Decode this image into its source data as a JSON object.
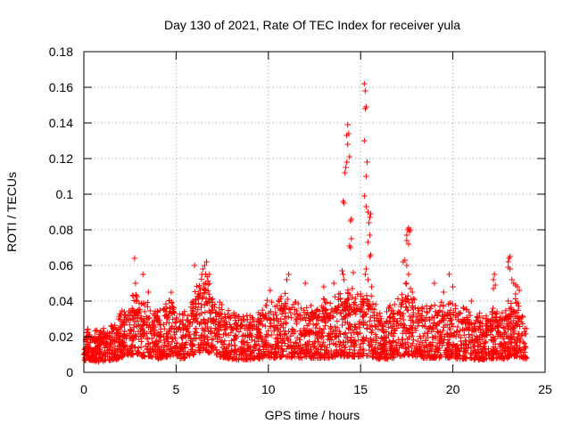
{
  "chart_data": {
    "type": "scatter",
    "title": "Day 130 of 2021, Rate Of TEC Index for receiver yula",
    "xlabel": "GPS time / hours",
    "ylabel": "ROTI / TECUs",
    "xlim": [
      0,
      25
    ],
    "ylim": [
      0,
      0.18
    ],
    "xticks": [
      0,
      5,
      10,
      15,
      20,
      25
    ],
    "xtick_labels": [
      "0",
      "5",
      "10",
      "15",
      "20",
      "25"
    ],
    "yticks": [
      0,
      0.02,
      0.04,
      0.06,
      0.08,
      0.1,
      0.12,
      0.14,
      0.16,
      0.18
    ],
    "ytick_labels": [
      "0",
      "0.02",
      "0.04",
      "0.06",
      "0.08",
      "0.1",
      "0.12",
      "0.14",
      "0.16",
      "0.18"
    ],
    "grid": true,
    "marker": "+",
    "marker_color": "#ff0000",
    "x_data_range": [
      0,
      24
    ],
    "series": [
      {
        "name": "ROTI",
        "points": [
          [
            2.75,
            0.064
          ],
          [
            3.2,
            0.055
          ],
          [
            2.8,
            0.05
          ],
          [
            3.5,
            0.045
          ],
          [
            6.0,
            0.06
          ],
          [
            6.45,
            0.058
          ],
          [
            6.55,
            0.06
          ],
          [
            6.65,
            0.062
          ],
          [
            6.8,
            0.055
          ],
          [
            6.6,
            0.05
          ],
          [
            10.1,
            0.046
          ],
          [
            11.0,
            0.052
          ],
          [
            11.1,
            0.055
          ],
          [
            12.0,
            0.05
          ],
          [
            13.0,
            0.048
          ],
          [
            13.55,
            0.05
          ],
          [
            14.0,
            0.057
          ],
          [
            14.05,
            0.055
          ],
          [
            14.1,
            0.052
          ],
          [
            14.05,
            0.096
          ],
          [
            14.1,
            0.095
          ],
          [
            14.15,
            0.112
          ],
          [
            14.2,
            0.115
          ],
          [
            14.25,
            0.118
          ],
          [
            14.25,
            0.133
          ],
          [
            14.3,
            0.139
          ],
          [
            14.35,
            0.134
          ],
          [
            14.3,
            0.128
          ],
          [
            14.4,
            0.121
          ],
          [
            14.45,
            0.085
          ],
          [
            14.5,
            0.086
          ],
          [
            14.5,
            0.075
          ],
          [
            14.4,
            0.071
          ],
          [
            14.45,
            0.07
          ],
          [
            14.6,
            0.056
          ],
          [
            14.55,
            0.047
          ],
          [
            15.2,
            0.162
          ],
          [
            15.25,
            0.158
          ],
          [
            15.3,
            0.149
          ],
          [
            15.25,
            0.148
          ],
          [
            15.2,
            0.13
          ],
          [
            15.35,
            0.118
          ],
          [
            15.3,
            0.11
          ],
          [
            15.2,
            0.099
          ],
          [
            15.3,
            0.093
          ],
          [
            15.4,
            0.09
          ],
          [
            15.5,
            0.087
          ],
          [
            15.45,
            0.084
          ],
          [
            15.55,
            0.089
          ],
          [
            15.5,
            0.077
          ],
          [
            15.4,
            0.073
          ],
          [
            15.55,
            0.066
          ],
          [
            15.5,
            0.065
          ],
          [
            15.3,
            0.058
          ],
          [
            15.25,
            0.055
          ],
          [
            15.4,
            0.052
          ],
          [
            15.6,
            0.048
          ],
          [
            15.0,
            0.044
          ],
          [
            17.5,
            0.077
          ],
          [
            17.55,
            0.08
          ],
          [
            17.6,
            0.081
          ],
          [
            17.65,
            0.079
          ],
          [
            17.7,
            0.08
          ],
          [
            17.5,
            0.074
          ],
          [
            17.6,
            0.072
          ],
          [
            17.3,
            0.062
          ],
          [
            17.4,
            0.063
          ],
          [
            17.5,
            0.06
          ],
          [
            17.6,
            0.055
          ],
          [
            17.45,
            0.05
          ],
          [
            17.7,
            0.047
          ],
          [
            17.8,
            0.045
          ],
          [
            19.0,
            0.05
          ],
          [
            19.5,
            0.045
          ],
          [
            19.8,
            0.055
          ],
          [
            20.0,
            0.048
          ],
          [
            21.0,
            0.04
          ],
          [
            22.2,
            0.052
          ],
          [
            22.25,
            0.055
          ],
          [
            22.3,
            0.049
          ],
          [
            22.2,
            0.047
          ],
          [
            23.0,
            0.062
          ],
          [
            23.05,
            0.064
          ],
          [
            23.1,
            0.065
          ],
          [
            23.0,
            0.059
          ],
          [
            23.1,
            0.058
          ],
          [
            23.2,
            0.052
          ],
          [
            23.3,
            0.05
          ],
          [
            23.4,
            0.049
          ],
          [
            23.5,
            0.048
          ],
          [
            23.6,
            0.046
          ],
          [
            23.0,
            0.04
          ],
          [
            23.4,
            0.044
          ]
        ],
        "dense_band": [
          [
            0.0,
            0.013,
            0.018
          ],
          [
            0.25,
            0.014,
            0.022
          ],
          [
            0.5,
            0.013,
            0.02
          ],
          [
            0.75,
            0.012,
            0.021
          ],
          [
            1.0,
            0.012,
            0.022
          ],
          [
            1.25,
            0.013,
            0.02
          ],
          [
            1.5,
            0.014,
            0.026
          ],
          [
            1.75,
            0.014,
            0.024
          ],
          [
            2.0,
            0.016,
            0.03
          ],
          [
            2.25,
            0.018,
            0.032
          ],
          [
            2.5,
            0.02,
            0.036
          ],
          [
            2.75,
            0.019,
            0.04
          ],
          [
            3.0,
            0.018,
            0.036
          ],
          [
            3.25,
            0.017,
            0.034
          ],
          [
            3.5,
            0.018,
            0.035
          ],
          [
            3.75,
            0.016,
            0.03
          ],
          [
            4.0,
            0.015,
            0.03
          ],
          [
            4.25,
            0.016,
            0.031
          ],
          [
            4.5,
            0.017,
            0.035
          ],
          [
            4.75,
            0.018,
            0.04
          ],
          [
            5.0,
            0.016,
            0.032
          ],
          [
            5.25,
            0.015,
            0.028
          ],
          [
            5.5,
            0.016,
            0.032
          ],
          [
            5.75,
            0.018,
            0.034
          ],
          [
            6.0,
            0.02,
            0.042
          ],
          [
            6.25,
            0.022,
            0.045
          ],
          [
            6.5,
            0.025,
            0.05
          ],
          [
            6.75,
            0.022,
            0.046
          ],
          [
            7.0,
            0.02,
            0.04
          ],
          [
            7.25,
            0.018,
            0.036
          ],
          [
            7.5,
            0.017,
            0.034
          ],
          [
            7.75,
            0.016,
            0.032
          ],
          [
            8.0,
            0.015,
            0.03
          ],
          [
            8.25,
            0.014,
            0.028
          ],
          [
            8.5,
            0.014,
            0.027
          ],
          [
            8.75,
            0.014,
            0.028
          ],
          [
            9.0,
            0.014,
            0.028
          ],
          [
            9.25,
            0.015,
            0.03
          ],
          [
            9.5,
            0.015,
            0.032
          ],
          [
            9.75,
            0.016,
            0.034
          ],
          [
            10.0,
            0.016,
            0.036
          ],
          [
            10.25,
            0.016,
            0.034
          ],
          [
            10.5,
            0.016,
            0.036
          ],
          [
            10.75,
            0.017,
            0.038
          ],
          [
            11.0,
            0.017,
            0.04
          ],
          [
            11.25,
            0.016,
            0.036
          ],
          [
            11.5,
            0.016,
            0.035
          ],
          [
            11.75,
            0.016,
            0.034
          ],
          [
            12.0,
            0.016,
            0.034
          ],
          [
            12.25,
            0.016,
            0.033
          ],
          [
            12.5,
            0.016,
            0.034
          ],
          [
            12.75,
            0.016,
            0.036
          ],
          [
            13.0,
            0.016,
            0.036
          ],
          [
            13.25,
            0.016,
            0.034
          ],
          [
            13.5,
            0.017,
            0.036
          ],
          [
            13.75,
            0.018,
            0.038
          ],
          [
            14.0,
            0.018,
            0.04
          ],
          [
            14.25,
            0.018,
            0.042
          ],
          [
            14.5,
            0.018,
            0.04
          ],
          [
            14.75,
            0.017,
            0.038
          ],
          [
            15.0,
            0.018,
            0.04
          ],
          [
            15.25,
            0.019,
            0.042
          ],
          [
            15.5,
            0.018,
            0.04
          ],
          [
            15.75,
            0.016,
            0.035
          ],
          [
            16.0,
            0.015,
            0.032
          ],
          [
            16.25,
            0.015,
            0.03
          ],
          [
            16.5,
            0.015,
            0.032
          ],
          [
            16.75,
            0.016,
            0.034
          ],
          [
            17.0,
            0.017,
            0.036
          ],
          [
            17.25,
            0.018,
            0.04
          ],
          [
            17.5,
            0.02,
            0.044
          ],
          [
            17.75,
            0.019,
            0.04
          ],
          [
            18.0,
            0.017,
            0.034
          ],
          [
            18.25,
            0.016,
            0.032
          ],
          [
            18.5,
            0.016,
            0.032
          ],
          [
            18.75,
            0.016,
            0.034
          ],
          [
            19.0,
            0.016,
            0.034
          ],
          [
            19.25,
            0.016,
            0.035
          ],
          [
            19.5,
            0.016,
            0.034
          ],
          [
            19.75,
            0.016,
            0.034
          ],
          [
            20.0,
            0.016,
            0.034
          ],
          [
            20.25,
            0.015,
            0.032
          ],
          [
            20.5,
            0.015,
            0.032
          ],
          [
            20.75,
            0.015,
            0.031
          ],
          [
            21.0,
            0.015,
            0.03
          ],
          [
            21.25,
            0.014,
            0.028
          ],
          [
            21.5,
            0.014,
            0.03
          ],
          [
            21.75,
            0.014,
            0.028
          ],
          [
            22.0,
            0.015,
            0.03
          ],
          [
            22.25,
            0.016,
            0.032
          ],
          [
            22.5,
            0.015,
            0.03
          ],
          [
            22.75,
            0.015,
            0.03
          ],
          [
            23.0,
            0.016,
            0.034
          ],
          [
            23.25,
            0.018,
            0.036
          ],
          [
            23.5,
            0.018,
            0.036
          ],
          [
            23.75,
            0.016,
            0.032
          ],
          [
            24.0,
            0.014,
            0.026
          ]
        ]
      }
    ]
  }
}
